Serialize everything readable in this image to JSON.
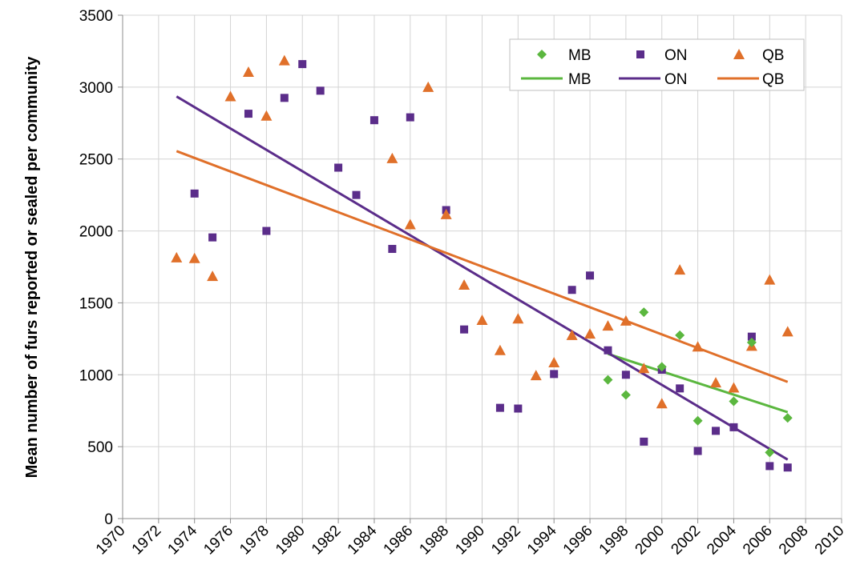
{
  "chart_data": {
    "type": "scatter",
    "title": "",
    "xlabel": "",
    "ylabel": "Mean number of furs reported or sealed per community",
    "xlim": [
      1970,
      2010
    ],
    "ylim": [
      0,
      3500
    ],
    "x_ticks": [
      1970,
      1972,
      1974,
      1976,
      1978,
      1980,
      1982,
      1984,
      1986,
      1988,
      1990,
      1992,
      1994,
      1996,
      1998,
      2000,
      2002,
      2004,
      2006,
      2008,
      2010
    ],
    "y_ticks": [
      0,
      500,
      1000,
      1500,
      2000,
      2500,
      3000,
      3500
    ],
    "grid": true,
    "legend_position": "top-right",
    "series": [
      {
        "name": "MB",
        "marker": "diamond",
        "color": "#5bb73f",
        "points": [
          [
            1997,
            965
          ],
          [
            1998,
            860
          ],
          [
            1999,
            1435
          ],
          [
            2000,
            1055
          ],
          [
            2001,
            1275
          ],
          [
            2002,
            680
          ],
          [
            2004,
            815
          ],
          [
            2005,
            1225
          ],
          [
            2006,
            460
          ],
          [
            2007,
            700
          ]
        ]
      },
      {
        "name": "ON",
        "marker": "square",
        "color": "#5b2d8a",
        "points": [
          [
            1974,
            2260
          ],
          [
            1975,
            1955
          ],
          [
            1977,
            2815
          ],
          [
            1978,
            2000
          ],
          [
            1979,
            2925
          ],
          [
            1980,
            3160
          ],
          [
            1981,
            2975
          ],
          [
            1982,
            2440
          ],
          [
            1983,
            2250
          ],
          [
            1984,
            2770
          ],
          [
            1985,
            1875
          ],
          [
            1986,
            2790
          ],
          [
            1988,
            2145
          ],
          [
            1989,
            1315
          ],
          [
            1991,
            770
          ],
          [
            1992,
            765
          ],
          [
            1994,
            1005
          ],
          [
            1995,
            1590
          ],
          [
            1996,
            1690
          ],
          [
            1997,
            1170
          ],
          [
            1998,
            1000
          ],
          [
            1999,
            535
          ],
          [
            2000,
            1035
          ],
          [
            2001,
            905
          ],
          [
            2002,
            470
          ],
          [
            2003,
            610
          ],
          [
            2004,
            635
          ],
          [
            2005,
            1265
          ],
          [
            2006,
            365
          ],
          [
            2007,
            355
          ]
        ]
      },
      {
        "name": "QB",
        "marker": "triangle",
        "color": "#e0702a",
        "points": [
          [
            1973,
            1815
          ],
          [
            1974,
            1810
          ],
          [
            1975,
            1685
          ],
          [
            1976,
            2935
          ],
          [
            1977,
            3105
          ],
          [
            1978,
            2800
          ],
          [
            1979,
            3185
          ],
          [
            1985,
            2505
          ],
          [
            1986,
            2045
          ],
          [
            1987,
            3000
          ],
          [
            1988,
            2115
          ],
          [
            1989,
            1625
          ],
          [
            1990,
            1380
          ],
          [
            1991,
            1170
          ],
          [
            1992,
            1390
          ],
          [
            1993,
            995
          ],
          [
            1994,
            1085
          ],
          [
            1995,
            1275
          ],
          [
            1996,
            1285
          ],
          [
            1997,
            1340
          ],
          [
            1998,
            1375
          ],
          [
            1999,
            1045
          ],
          [
            2000,
            800
          ],
          [
            2001,
            1730
          ],
          [
            2002,
            1195
          ],
          [
            2003,
            945
          ],
          [
            2004,
            910
          ],
          [
            2005,
            1200
          ],
          [
            2006,
            1660
          ],
          [
            2007,
            1300
          ]
        ]
      }
    ],
    "trendlines": [
      {
        "name": "MB",
        "color": "#5bb73f",
        "points": [
          [
            1997,
            1145
          ],
          [
            2007,
            740
          ]
        ]
      },
      {
        "name": "ON",
        "color": "#5b2d8a",
        "points": [
          [
            1973,
            2935
          ],
          [
            2007,
            410
          ]
        ]
      },
      {
        "name": "QB",
        "color": "#e0702a",
        "points": [
          [
            1973,
            2555
          ],
          [
            2007,
            950
          ]
        ]
      }
    ],
    "legend": {
      "markers": [
        "MB",
        "ON",
        "QB"
      ],
      "lines": [
        "MB",
        "ON",
        "QB"
      ]
    }
  }
}
